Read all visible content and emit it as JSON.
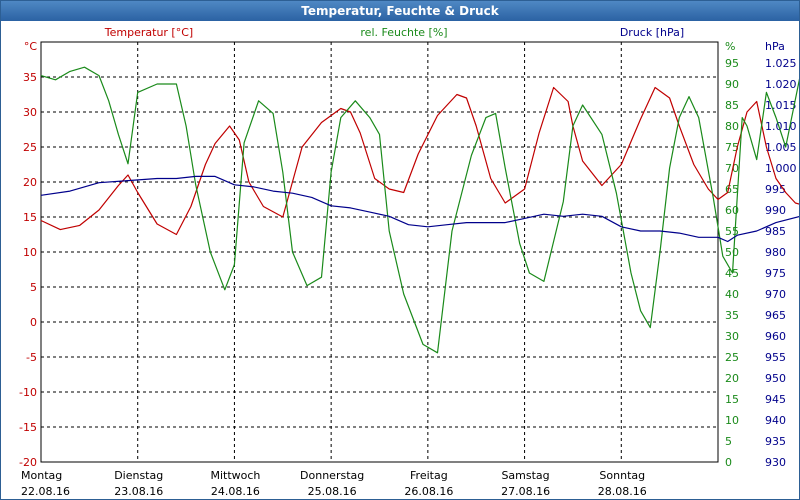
{
  "window": {
    "title": "Temperatur, Feuchte & Druck"
  },
  "colors": {
    "temperature": "#c00000",
    "humidity": "#1a8a1a",
    "pressure": "#00008b",
    "grid": "#000000",
    "titlebar": "#2b62a3"
  },
  "chart_data": {
    "type": "line",
    "title": "Temperatur, Feuchte & Druck",
    "grid": true,
    "x_categories": [
      {
        "day": "Montag",
        "date": "22.08.16"
      },
      {
        "day": "Dienstag",
        "date": "23.08.16"
      },
      {
        "day": "Mittwoch",
        "date": "24.08.16"
      },
      {
        "day": "Donnerstag",
        "date": "25.08.16"
      },
      {
        "day": "Freitag",
        "date": "26.08.16"
      },
      {
        "day": "Samstag",
        "date": "27.08.16"
      },
      {
        "day": "Sonntag",
        "date": "28.08.16"
      }
    ],
    "axes": {
      "temperature": {
        "label": "Temperatur [°C]",
        "unit": "°C",
        "ylim": [
          -20,
          40
        ],
        "ticks": [
          "35",
          "30",
          "25",
          "20",
          "15",
          "10",
          "5",
          "0",
          "-5",
          "-10",
          "-15",
          "-20"
        ]
      },
      "humidity": {
        "label": "rel. Feuchte [%]",
        "unit": "%",
        "ylim": [
          0,
          100
        ],
        "ticks": [
          "95",
          "90",
          "85",
          "80",
          "75",
          "70",
          "65",
          "60",
          "55",
          "50",
          "45",
          "40",
          "35",
          "30",
          "25",
          "20",
          "15",
          "10",
          "5",
          "0"
        ]
      },
      "pressure": {
        "label": "Druck [hPa]",
        "unit": "hPa",
        "ylim": [
          930,
          1030
        ],
        "ticks": [
          "1.025",
          "1.020",
          "1.015",
          "1.010",
          "1.005",
          "1.000",
          "995",
          "990",
          "985",
          "980",
          "975",
          "970",
          "965",
          "960",
          "955",
          "950",
          "945",
          "940",
          "935",
          "930"
        ]
      }
    },
    "series": [
      {
        "name": "Temperatur [°C]",
        "axis": "temperature",
        "color": "#c00000",
        "x": [
          0,
          0.2,
          0.4,
          0.6,
          0.8,
          0.9,
          1.0,
          1.2,
          1.4,
          1.55,
          1.7,
          1.8,
          1.95,
          2.05,
          2.15,
          2.3,
          2.5,
          2.7,
          2.9,
          3.1,
          3.2,
          3.3,
          3.45,
          3.6,
          3.75,
          3.9,
          4.1,
          4.3,
          4.4,
          4.5,
          4.65,
          4.8,
          5.0,
          5.15,
          5.3,
          5.45,
          5.5,
          5.6,
          5.8,
          6.0,
          6.2,
          6.35,
          6.5,
          6.6,
          6.75,
          6.9,
          7.0,
          7.1,
          7.2,
          7.3,
          7.4,
          7.5,
          7.6,
          7.7,
          7.8,
          7.85
        ],
        "y": [
          14.5,
          13.2,
          13.8,
          16.0,
          19.5,
          21.0,
          18.5,
          14.0,
          12.5,
          16.5,
          22.5,
          25.5,
          28.0,
          26.0,
          20.0,
          16.5,
          15.0,
          25.0,
          28.5,
          30.5,
          30.0,
          27.0,
          20.5,
          19.0,
          18.5,
          24.0,
          29.5,
          32.5,
          32.0,
          28.0,
          20.5,
          17.0,
          19.0,
          27.0,
          33.5,
          31.5,
          28.0,
          23.0,
          19.5,
          22.5,
          29.0,
          33.5,
          32.0,
          28.0,
          22.5,
          19.0,
          17.5,
          18.5,
          25.0,
          30.0,
          31.5,
          25.0,
          20.5,
          18.5,
          17.0,
          16.8
        ]
      },
      {
        "name": "rel. Feuchte [%]",
        "axis": "humidity",
        "color": "#1a8a1a",
        "x": [
          0,
          0.15,
          0.3,
          0.45,
          0.6,
          0.7,
          0.8,
          0.9,
          1.0,
          1.2,
          1.4,
          1.5,
          1.6,
          1.75,
          1.9,
          2.0,
          2.1,
          2.25,
          2.4,
          2.5,
          2.6,
          2.75,
          2.9,
          3.0,
          3.1,
          3.25,
          3.4,
          3.5,
          3.6,
          3.75,
          3.95,
          4.1,
          4.25,
          4.45,
          4.6,
          4.7,
          4.8,
          4.95,
          5.05,
          5.2,
          5.4,
          5.5,
          5.6,
          5.8,
          5.95,
          6.1,
          6.2,
          6.3,
          6.4,
          6.5,
          6.6,
          6.7,
          6.8,
          6.95,
          7.05,
          7.15,
          7.25,
          7.3,
          7.4,
          7.5,
          7.6,
          7.7,
          7.85
        ],
        "y": [
          92,
          91,
          93,
          94,
          92,
          86,
          78,
          71,
          88,
          90,
          90,
          80,
          66,
          50,
          41,
          47,
          76,
          86,
          83,
          69,
          50,
          42,
          44,
          69,
          82,
          86,
          82,
          78,
          55,
          40,
          28,
          26,
          55,
          73,
          82,
          83,
          70,
          52,
          45,
          43,
          62,
          80,
          85,
          78,
          64,
          45,
          36,
          32,
          50,
          70,
          82,
          87,
          82,
          63,
          49,
          45,
          82,
          80,
          72,
          88,
          82,
          75,
          92
        ]
      },
      {
        "name": "Druck [hPa]",
        "axis": "pressure",
        "color": "#00008b",
        "x": [
          0,
          0.3,
          0.6,
          0.9,
          1.2,
          1.4,
          1.6,
          1.8,
          2.0,
          2.2,
          2.4,
          2.6,
          2.8,
          3.0,
          3.2,
          3.4,
          3.6,
          3.8,
          4.0,
          4.2,
          4.4,
          4.6,
          4.8,
          5.0,
          5.2,
          5.4,
          5.6,
          5.8,
          6.0,
          6.2,
          6.4,
          6.6,
          6.8,
          7.0,
          7.1,
          7.2,
          7.4,
          7.6,
          7.85
        ],
        "y": [
          993.5,
          994.5,
          996.5,
          997,
          997.5,
          997.5,
          998,
          998,
          996,
          995.5,
          994.5,
          994,
          993,
          991,
          990.5,
          989.5,
          988.5,
          986.5,
          986,
          986.5,
          987,
          987,
          987,
          988,
          989,
          988.5,
          989,
          988.5,
          986,
          985,
          985,
          984.5,
          983.5,
          983.5,
          982.5,
          984,
          985,
          987,
          988.5
        ]
      }
    ]
  }
}
